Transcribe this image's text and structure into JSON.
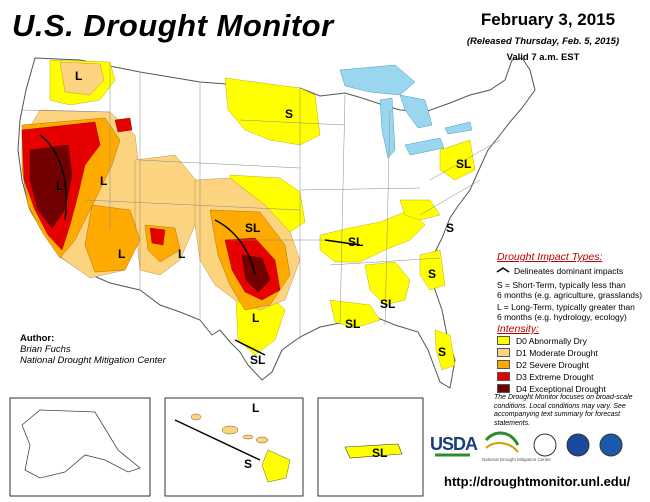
{
  "header": {
    "title": "U.S. Drought Monitor",
    "date": "February 3, 2015",
    "released": "(Released Thursday, Feb. 5, 2015)",
    "valid": "Valid 7 a.m. EST"
  },
  "impact_legend": {
    "title": "Drought Impact Types:",
    "delineates": "Delineates dominant impacts",
    "s_line1": "S = Short-Term, typically less than",
    "s_line2": "6 months (e.g. agriculture, grasslands)",
    "l_line1": "L = Long-Term, typically greater than",
    "l_line2": "6 months (e.g. hydrology, ecology)"
  },
  "intensity_legend": {
    "title": "Intensity:",
    "items": [
      {
        "label": "D0 Abnormally Dry",
        "color": "#ffff00"
      },
      {
        "label": "D1 Moderate Drought",
        "color": "#fcd37f"
      },
      {
        "label": "D2 Severe Drought",
        "color": "#ffaa00"
      },
      {
        "label": "D3 Extreme Drought",
        "color": "#e60000"
      },
      {
        "label": "D4 Exceptional Drought",
        "color": "#730000"
      }
    ]
  },
  "note": "The Drought Monitor focuses on broad-scale conditions. Local conditions may vary. See accompanying text summary for forecast statements.",
  "author": {
    "label": "Author:",
    "name": "Brian Fuchs",
    "org": "National Drought Mitigation Center"
  },
  "url": "http://droughtmonitor.unl.edu/",
  "logos": {
    "usda": "USDA",
    "ndmc": "National Drought Mitigation Center"
  },
  "map_labels": {
    "l": "L",
    "s": "S",
    "sl": "SL"
  },
  "colors": {
    "water": "#9ad7ef",
    "d0": "#ffff00",
    "d1": "#fcd37f",
    "d2": "#ffaa00",
    "d3": "#e60000",
    "d4": "#730000"
  }
}
